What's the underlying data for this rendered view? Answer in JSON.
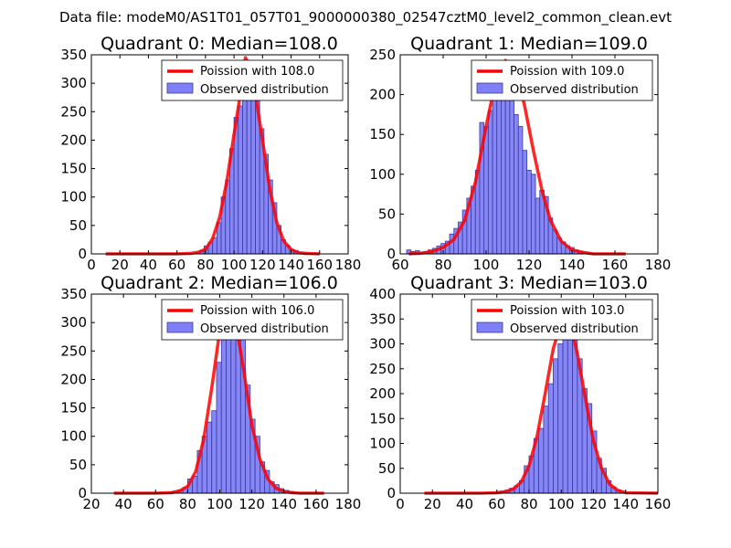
{
  "suptitle": "Data file: modeM0/AS1T01_057T01_9000000380_02547cztM0_level2_common_clean.evt",
  "colors": {
    "bar_fill": "#7f7ff7",
    "bar_edge": "#3a3a9e",
    "curve": "#ff0000",
    "axes": "#000000",
    "background": "#ffffff"
  },
  "chart_data": [
    {
      "type": "bar",
      "title": "Quadrant 0: Median=108.0",
      "xlim": [
        0,
        180
      ],
      "ylim": [
        0,
        350
      ],
      "xticks": [
        "0",
        "20",
        "40",
        "60",
        "80",
        "100",
        "120",
        "140",
        "160",
        "180"
      ],
      "yticks": [
        "0",
        "50",
        "100",
        "150",
        "200",
        "250",
        "300",
        "350"
      ],
      "legend": [
        "Poission with 108.0",
        "Observed distribution"
      ],
      "bin_width": 3,
      "bins_x": [
        73,
        76,
        79,
        82,
        85,
        88,
        91,
        94,
        97,
        100,
        103,
        106,
        109,
        112,
        115,
        118,
        121,
        124,
        127,
        130,
        133,
        136,
        139,
        142,
        145,
        148,
        151
      ],
      "counts": [
        2,
        6,
        14,
        20,
        28,
        55,
        100,
        130,
        185,
        240,
        260,
        290,
        340,
        325,
        270,
        220,
        175,
        130,
        90,
        50,
        25,
        15,
        8,
        6,
        3,
        2,
        1
      ],
      "curve_x": [
        10,
        60,
        70,
        75,
        80,
        85,
        90,
        95,
        100,
        105,
        108,
        111,
        115,
        120,
        125,
        130,
        135,
        140,
        145,
        150,
        160
      ],
      "curve_y": [
        0,
        0,
        1,
        3,
        8,
        27,
        65,
        128,
        210,
        290,
        345,
        330,
        280,
        200,
        115,
        55,
        22,
        8,
        2,
        1,
        0
      ]
    },
    {
      "type": "bar",
      "title": "Quadrant 1: Median=109.0",
      "xlim": [
        60,
        180
      ],
      "ylim": [
        0,
        250
      ],
      "xticks": [
        "60",
        "80",
        "100",
        "120",
        "140",
        "160",
        "180"
      ],
      "yticks": [
        "0",
        "50",
        "100",
        "150",
        "200",
        "250"
      ],
      "legend": [
        "Poission with 109.0",
        "Observed distribution"
      ],
      "bin_width": 2,
      "bins_x": [
        63,
        65,
        67,
        69,
        71,
        73,
        75,
        77,
        79,
        81,
        83,
        85,
        87,
        89,
        91,
        93,
        95,
        97,
        99,
        101,
        103,
        105,
        107,
        109,
        111,
        113,
        115,
        117,
        119,
        121,
        123,
        125,
        127,
        129,
        131,
        133,
        135,
        137,
        139,
        141,
        143,
        145,
        147
      ],
      "counts": [
        5,
        3,
        4,
        2,
        3,
        5,
        7,
        10,
        13,
        16,
        25,
        32,
        40,
        55,
        70,
        85,
        105,
        165,
        160,
        180,
        195,
        215,
        232,
        220,
        210,
        175,
        160,
        130,
        105,
        100,
        70,
        80,
        72,
        45,
        30,
        20,
        15,
        10,
        8,
        5,
        3,
        2,
        1
      ],
      "curve_x": [
        64,
        70,
        75,
        80,
        85,
        90,
        95,
        100,
        105,
        109,
        114,
        118,
        122,
        126,
        130,
        135,
        140,
        145,
        150,
        160,
        165
      ],
      "curve_y": [
        0,
        1,
        3,
        8,
        18,
        42,
        90,
        160,
        225,
        243,
        230,
        185,
        130,
        80,
        42,
        16,
        5,
        2,
        0,
        0,
        0
      ]
    },
    {
      "type": "bar",
      "title": "Quadrant 2: Median=106.0",
      "xlim": [
        20,
        180
      ],
      "ylim": [
        0,
        350
      ],
      "xticks": [
        "20",
        "40",
        "60",
        "80",
        "100",
        "120",
        "140",
        "160",
        "180"
      ],
      "yticks": [
        "0",
        "50",
        "100",
        "150",
        "200",
        "250",
        "300",
        "350"
      ],
      "legend": [
        "Poission with 106.0",
        "Observed distribution"
      ],
      "bin_width": 3,
      "bins_x": [
        68,
        71,
        74,
        77,
        80,
        83,
        86,
        89,
        92,
        95,
        98,
        101,
        104,
        107,
        110,
        113,
        116,
        119,
        122,
        125,
        128,
        131,
        134,
        137,
        140,
        143,
        146
      ],
      "counts": [
        2,
        3,
        6,
        10,
        25,
        30,
        75,
        100,
        125,
        145,
        230,
        270,
        330,
        320,
        310,
        275,
        190,
        130,
        100,
        55,
        40,
        20,
        15,
        8,
        5,
        3,
        1
      ],
      "curve_x": [
        34,
        60,
        70,
        75,
        80,
        85,
        90,
        95,
        100,
        103,
        106,
        110,
        115,
        120,
        125,
        130,
        135,
        140,
        145,
        150,
        165
      ],
      "curve_y": [
        0,
        0,
        1,
        4,
        12,
        38,
        95,
        185,
        285,
        325,
        335,
        300,
        215,
        120,
        60,
        25,
        9,
        3,
        1,
        0,
        0
      ]
    },
    {
      "type": "bar",
      "title": "Quadrant 3: Median=103.0",
      "xlim": [
        0,
        160
      ],
      "ylim": [
        0,
        400
      ],
      "xticks": [
        "0",
        "20",
        "40",
        "60",
        "80",
        "100",
        "120",
        "140",
        "160"
      ],
      "yticks": [
        "0",
        "50",
        "100",
        "150",
        "200",
        "250",
        "300",
        "350",
        "400"
      ],
      "legend": [
        "Poission with 103.0",
        "Observed distribution"
      ],
      "bin_width": 3,
      "bins_x": [
        59,
        62,
        65,
        68,
        71,
        74,
        77,
        80,
        83,
        86,
        89,
        92,
        95,
        98,
        101,
        104,
        107,
        110,
        113,
        116,
        119,
        122,
        125,
        128,
        131,
        134,
        137
      ],
      "counts": [
        2,
        4,
        6,
        10,
        15,
        25,
        55,
        75,
        110,
        130,
        175,
        220,
        270,
        300,
        330,
        345,
        325,
        270,
        210,
        180,
        125,
        70,
        50,
        25,
        12,
        6,
        2
      ],
      "curve_x": [
        15,
        50,
        60,
        65,
        70,
        75,
        80,
        85,
        90,
        95,
        100,
        103,
        106,
        110,
        115,
        120,
        125,
        130,
        135,
        140,
        160
      ],
      "curve_y": [
        0,
        0,
        1,
        3,
        8,
        22,
        55,
        115,
        200,
        290,
        345,
        353,
        335,
        280,
        190,
        105,
        50,
        18,
        6,
        1,
        0
      ]
    }
  ]
}
